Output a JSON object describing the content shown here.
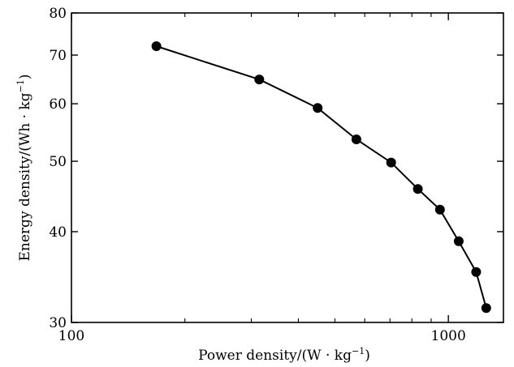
{
  "chart_data": {
    "type": "line",
    "xlabel": "Power density/(W · kg",
    "xlabel_unit_exponent": "−1",
    "xlabel_close": ")",
    "ylabel": "Energy density/(Wh · kg",
    "ylabel_unit_exponent": "−1",
    "ylabel_close": ")",
    "x_scale": "log",
    "y_scale": "log",
    "xlim": [
      100,
      1400
    ],
    "ylim": [
      30,
      80
    ],
    "x_major_ticks": [
      100,
      1000
    ],
    "x_minor_ticks": [
      200,
      300,
      400,
      500,
      600,
      700,
      800,
      900
    ],
    "y_major_ticks": [
      30,
      40,
      50,
      60,
      70,
      80
    ],
    "grid": false,
    "legend": "none",
    "series": [
      {
        "marker": "filled-circle",
        "color": "#000000",
        "x": [
          168,
          315,
          450,
          570,
          705,
          830,
          950,
          1065,
          1185,
          1260
        ],
        "y": [
          72.0,
          64.8,
          59.2,
          53.6,
          49.8,
          45.8,
          42.9,
          38.8,
          35.2,
          31.4
        ]
      }
    ]
  }
}
